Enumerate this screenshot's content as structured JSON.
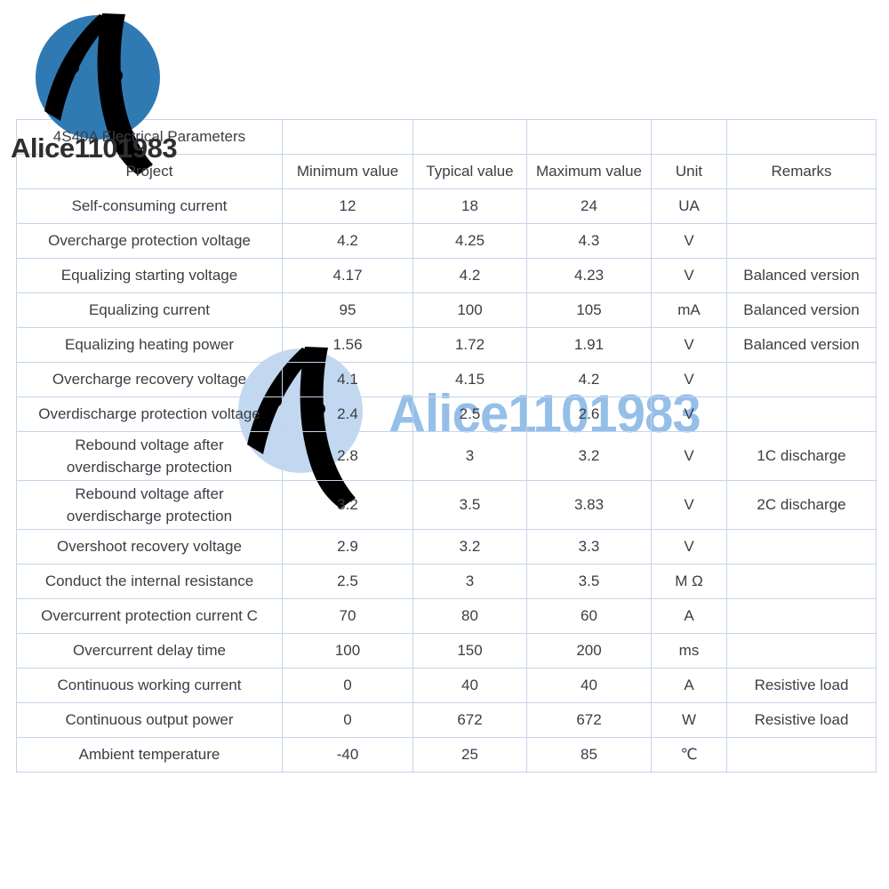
{
  "branding": {
    "username_dark": "Alice1101983",
    "username_light": "Alice1101983",
    "logo_icon": "sail-circuit-logo",
    "colors": {
      "logo_blue": "#307ab4",
      "logo_light_blue": "#c2d8f0",
      "username_light_blue": "#94bfe9",
      "username_dark_gray": "#2e2e2e"
    }
  },
  "table": {
    "title": "4S40A Electrical Parameters",
    "headers": [
      "Project",
      "Minimum value",
      "Typical value",
      "Maximum value",
      "Unit",
      "Remarks"
    ],
    "rows": [
      [
        "Self-consuming current",
        "12",
        "18",
        "24",
        "UA",
        ""
      ],
      [
        "Overcharge protection voltage",
        "4.2",
        "4.25",
        "4.3",
        "V",
        ""
      ],
      [
        "Equalizing starting voltage",
        "4.17",
        "4.2",
        "4.23",
        "V",
        "Balanced version"
      ],
      [
        "Equalizing current",
        "95",
        "100",
        "105",
        "mA",
        "Balanced version"
      ],
      [
        "Equalizing heating power",
        "1.56",
        "1.72",
        "1.91",
        "V",
        "Balanced version"
      ],
      [
        "Overcharge recovery voltage",
        "4.1",
        "4.15",
        "4.2",
        "V",
        ""
      ],
      [
        "Overdischarge protection voltage",
        "2.4",
        "2.5",
        "2.6",
        "V",
        ""
      ],
      [
        "Rebound voltage after\noverdischarge protection",
        "2.8",
        "3",
        "3.2",
        "V",
        "1C discharge"
      ],
      [
        "Rebound voltage after\noverdischarge protection",
        "3.2",
        "3.5",
        "3.83",
        "V",
        "2C discharge"
      ],
      [
        "Overshoot recovery voltage",
        "2.9",
        "3.2",
        "3.3",
        "V",
        ""
      ],
      [
        "Conduct the internal resistance",
        "2.5",
        "3",
        "3.5",
        "M Ω",
        ""
      ],
      [
        "Overcurrent protection current C",
        "70",
        "80",
        "60",
        "A",
        ""
      ],
      [
        "Overcurrent delay time",
        "100",
        "150",
        "200",
        "ms",
        ""
      ],
      [
        "Continuous working current",
        "0",
        "40",
        "40",
        "A",
        "Resistive load"
      ],
      [
        "Continuous output power",
        "0",
        "672",
        "672",
        "W",
        "Resistive load"
      ],
      [
        "Ambient temperature",
        "-40",
        "25",
        "85",
        "℃",
        ""
      ]
    ],
    "style": {
      "border_color": "#c7d3e9",
      "text_color": "#3b3e44"
    }
  }
}
